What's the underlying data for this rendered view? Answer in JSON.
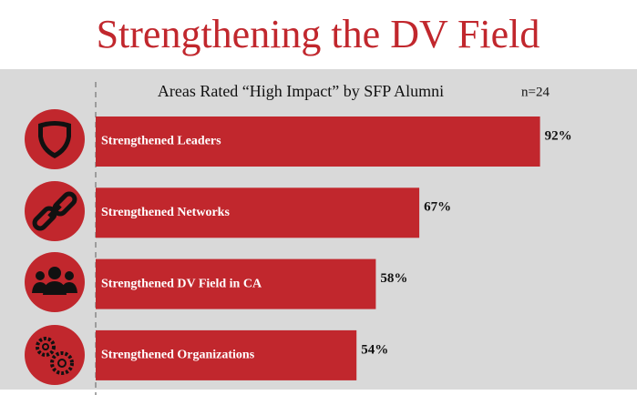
{
  "chart_data": {
    "type": "bar",
    "orientation": "horizontal",
    "title": "Strengthening the DV Field",
    "subtitle": "Areas Rated “High Impact” by SFP Alumni",
    "annotation": "n=24",
    "categories": [
      "Strengthened Leaders",
      "Strengthened Networks",
      "Strengthened DV Field in CA",
      "Strengthened Organizations"
    ],
    "values": [
      92,
      67,
      58,
      54
    ],
    "value_labels": [
      "92%",
      "67%",
      "58%",
      "54%"
    ],
    "color": "#c1272d"
  }
}
